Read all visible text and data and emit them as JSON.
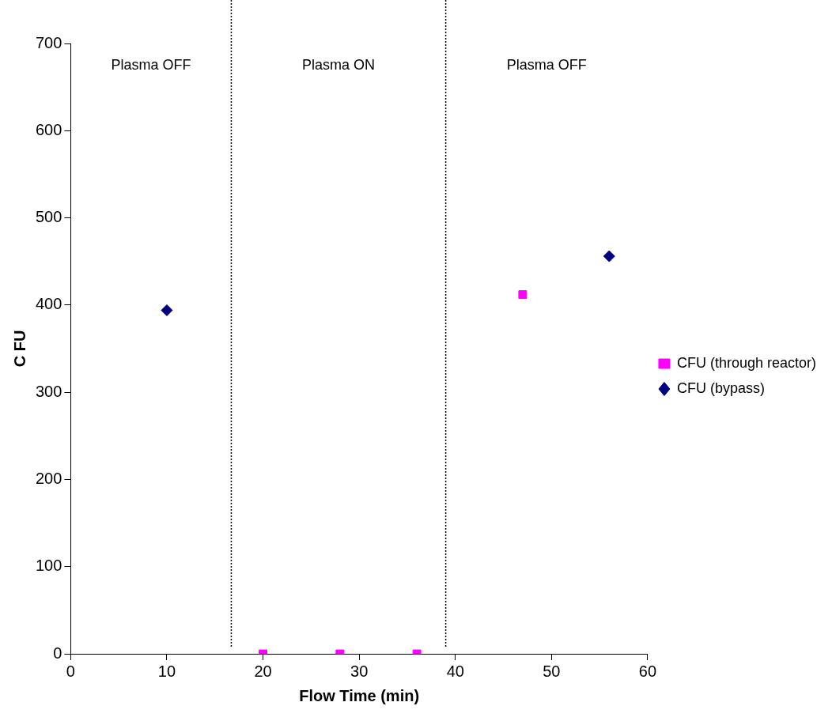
{
  "chart_data": {
    "type": "scatter",
    "xlabel": "Flow Time (min)",
    "ylabel": "C FU",
    "xlim": [
      0,
      60
    ],
    "xticks": [
      0,
      10,
      20,
      30,
      40,
      50,
      60
    ],
    "ylim": [
      0,
      700
    ],
    "yticks": [
      0,
      100,
      200,
      300,
      400,
      500,
      600,
      700
    ],
    "grid": false,
    "legend": "right",
    "series": [
      {
        "name": "CFU (through reactor)",
        "color": "#ff00ff",
        "marker": "square",
        "x": [
          20,
          28,
          36,
          47
        ],
        "values": [
          0,
          0,
          0,
          412
        ]
      },
      {
        "name": "CFU (bypass)",
        "color": "#000080",
        "marker": "diamond",
        "x": [
          10,
          56
        ],
        "values": [
          394,
          456
        ]
      }
    ],
    "ref_lines": [
      {
        "axis": "x",
        "value": 16.7,
        "color": "#000000",
        "line_style": "dotted"
      },
      {
        "axis": "x",
        "value": 39,
        "color": "#000000",
        "line_style": "dotted"
      }
    ],
    "annotations": [
      "Plasma OFF",
      "Plasma ON",
      "Plasma OFF"
    ]
  }
}
